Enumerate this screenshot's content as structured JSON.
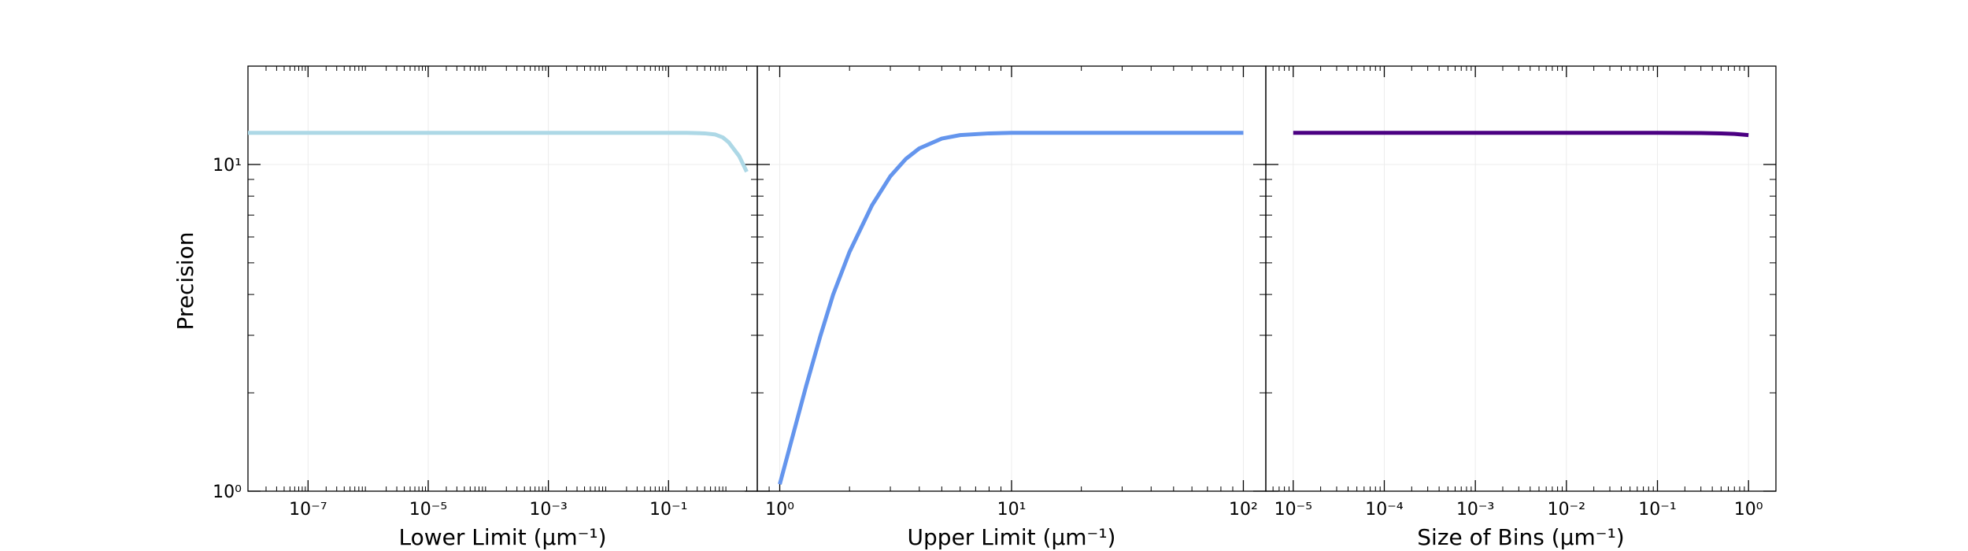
{
  "chart_data": [
    {
      "type": "line",
      "xlabel": "Lower Limit (μm⁻¹)",
      "ylabel": "Precision",
      "xscale": "log",
      "yscale": "log",
      "xlim": [
        1e-08,
        3.0
      ],
      "ylim": [
        1,
        20
      ],
      "grid": true,
      "legend": "none",
      "color": "#add8e6",
      "x_ticks": [
        {
          "value": 1e-07,
          "label": "10⁻⁷"
        },
        {
          "value": 1e-05,
          "label": "10⁻⁵"
        },
        {
          "value": 0.001,
          "label": "10⁻³"
        },
        {
          "value": 0.1,
          "label": "10⁻¹"
        }
      ],
      "y_ticks": [
        {
          "value": 1,
          "label": "10⁰"
        },
        {
          "value": 10,
          "label": "10¹"
        }
      ],
      "series": [
        {
          "x": [
            1e-08,
            1e-07,
            1e-06,
            1e-05,
            0.0001,
            0.001,
            0.01,
            0.1,
            0.2,
            0.4,
            0.6,
            0.8,
            1.0,
            1.5,
            2.0
          ],
          "y": [
            12.5,
            12.5,
            12.5,
            12.5,
            12.5,
            12.5,
            12.5,
            12.5,
            12.5,
            12.45,
            12.35,
            12.1,
            11.7,
            10.6,
            9.5
          ]
        }
      ]
    },
    {
      "type": "line",
      "xlabel": "Upper Limit (μm⁻¹)",
      "xscale": "log",
      "yscale": "log",
      "xlim": [
        0.8,
        125
      ],
      "ylim": [
        1,
        20
      ],
      "grid": true,
      "legend": "none",
      "color": "#6495ed",
      "x_ticks": [
        {
          "value": 1,
          "label": "10⁰"
        },
        {
          "value": 10,
          "label": "10¹"
        },
        {
          "value": 100,
          "label": "10²"
        }
      ],
      "y_ticks": [
        {
          "value": 1,
          "label": "10⁰"
        },
        {
          "value": 10,
          "label": "10¹"
        }
      ],
      "series": [
        {
          "x": [
            1.0,
            1.1,
            1.2,
            1.3,
            1.5,
            1.7,
            2.0,
            2.5,
            3.0,
            3.5,
            4.0,
            5.0,
            6.0,
            8.0,
            10,
            20,
            50,
            100
          ],
          "y": [
            1.05,
            1.35,
            1.7,
            2.1,
            3.0,
            4.0,
            5.4,
            7.5,
            9.2,
            10.4,
            11.2,
            12.0,
            12.3,
            12.45,
            12.5,
            12.5,
            12.5,
            12.5
          ]
        }
      ]
    },
    {
      "type": "line",
      "xlabel": "Size of Bins (μm⁻¹)",
      "xscale": "log",
      "yscale": "log",
      "xlim": [
        5e-06,
        2.0
      ],
      "ylim": [
        1,
        20
      ],
      "grid": true,
      "legend": "none",
      "color": "#4b0082",
      "x_ticks": [
        {
          "value": 1e-05,
          "label": "10⁻⁵"
        },
        {
          "value": 0.0001,
          "label": "10⁻⁴"
        },
        {
          "value": 0.001,
          "label": "10⁻³"
        },
        {
          "value": 0.01,
          "label": "10⁻²"
        },
        {
          "value": 0.1,
          "label": "10⁻¹"
        },
        {
          "value": 1,
          "label": "10⁰"
        }
      ],
      "y_ticks": [
        {
          "value": 1,
          "label": "10⁰"
        },
        {
          "value": 10,
          "label": "10¹"
        }
      ],
      "series": [
        {
          "x": [
            1e-05,
            0.0001,
            0.001,
            0.01,
            0.1,
            0.3,
            0.5,
            0.7,
            1.0
          ],
          "y": [
            12.5,
            12.5,
            12.5,
            12.5,
            12.5,
            12.48,
            12.45,
            12.4,
            12.3
          ]
        }
      ]
    }
  ]
}
